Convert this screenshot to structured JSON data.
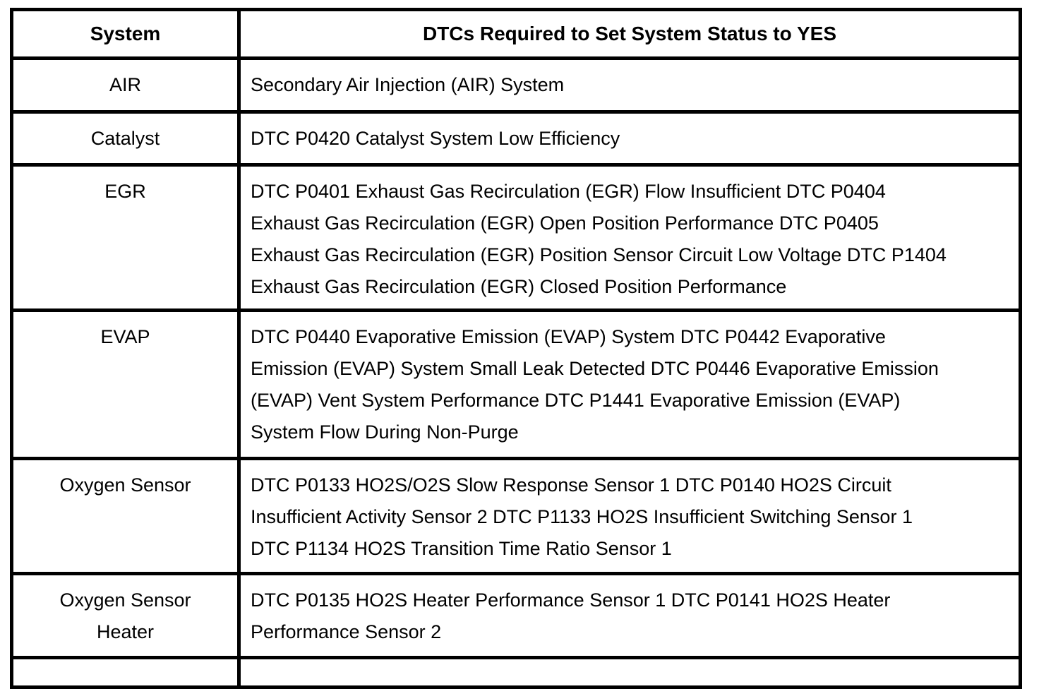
{
  "page": {
    "background_color": "#ffffff",
    "text_color": "#000000",
    "border_color": "#000000"
  },
  "table": {
    "columns": [
      {
        "label": "System"
      },
      {
        "label": "DTCs Required to Set System Status to YES"
      }
    ],
    "rows": [
      {
        "system": "AIR",
        "dtcs": "Secondary Air Injection (AIR) System"
      },
      {
        "system": "Catalyst",
        "dtcs": "DTC P0420 Catalyst System Low Efficiency"
      },
      {
        "system": "EGR",
        "dtcs": "DTC P0401 Exhaust Gas Recirculation (EGR) Flow Insufficient DTC P0404\nExhaust Gas Recirculation (EGR) Open Position Performance DTC P0405\nExhaust Gas Recirculation (EGR) Position Sensor Circuit Low Voltage DTC P1404\nExhaust Gas Recirculation (EGR) Closed Position Performance"
      },
      {
        "system": "EVAP",
        "dtcs": "DTC P0440 Evaporative Emission (EVAP) System DTC P0442 Evaporative\nEmission (EVAP) System Small Leak Detected DTC P0446 Evaporative Emission\n(EVAP) Vent System Performance DTC P1441 Evaporative Emission (EVAP)\nSystem Flow During Non-Purge"
      },
      {
        "system": "Oxygen Sensor",
        "dtcs": "DTC P0133 HO2S/O2S Slow Response Sensor 1 DTC P0140 HO2S Circuit\nInsufficient Activity Sensor 2 DTC P1133 HO2S Insufficient Switching Sensor 1\nDTC P1134 HO2S Transition Time Ratio Sensor 1"
      },
      {
        "system": "Oxygen Sensor\nHeater",
        "dtcs": "DTC P0135 HO2S Heater Performance Sensor 1 DTC P0141 HO2S Heater\nPerformance Sensor 2"
      }
    ]
  }
}
